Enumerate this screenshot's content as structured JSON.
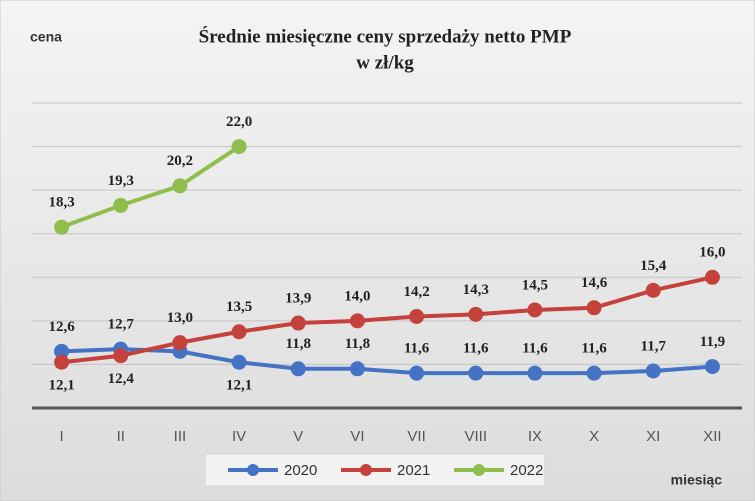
{
  "chart_data": {
    "type": "line",
    "title": "Średnie miesięczne ceny sprzedaży netto PMP",
    "subtitle": "w zł/kg",
    "y_label": "cena",
    "x_label": "miesiąc",
    "categories": [
      "I",
      "II",
      "III",
      "IV",
      "V",
      "VI",
      "VII",
      "VIII",
      "IX",
      "X",
      "XI",
      "XII"
    ],
    "series": [
      {
        "name": "2020",
        "color": "#4472c4",
        "values": [
          12.6,
          12.7,
          12.6,
          12.1,
          11.8,
          11.8,
          11.6,
          11.6,
          11.6,
          11.6,
          11.7,
          11.9
        ],
        "value_labels": [
          "12,6",
          "12,7",
          null,
          "12,1",
          "11,8",
          "11,8",
          "11,6",
          "11,6",
          "11,6",
          "11,6",
          "11,7",
          "11,9"
        ]
      },
      {
        "name": "2021",
        "color": "#c4413c",
        "values": [
          12.1,
          12.4,
          13.0,
          13.5,
          13.9,
          14.0,
          14.2,
          14.3,
          14.5,
          14.6,
          15.4,
          16.0
        ],
        "value_labels": [
          "12,1",
          "12,4",
          "13,0",
          "13,5",
          "13,9",
          "14,0",
          "14,2",
          "14,3",
          "14,5",
          "14,6",
          "15,4",
          "16,0"
        ]
      },
      {
        "name": "2022",
        "color": "#8fbe4f",
        "values": [
          18.3,
          19.3,
          20.2,
          22.0,
          null,
          null,
          null,
          null,
          null,
          null,
          null,
          null
        ],
        "value_labels": [
          "18,3",
          "19,3",
          "20,2",
          "22,0",
          null,
          null,
          null,
          null,
          null,
          null,
          null,
          null
        ]
      }
    ],
    "ylim": [
      10,
      24
    ],
    "yticks": [
      10,
      12,
      14,
      16,
      18,
      20,
      22,
      24
    ],
    "grid": true,
    "legend": "bottom"
  }
}
